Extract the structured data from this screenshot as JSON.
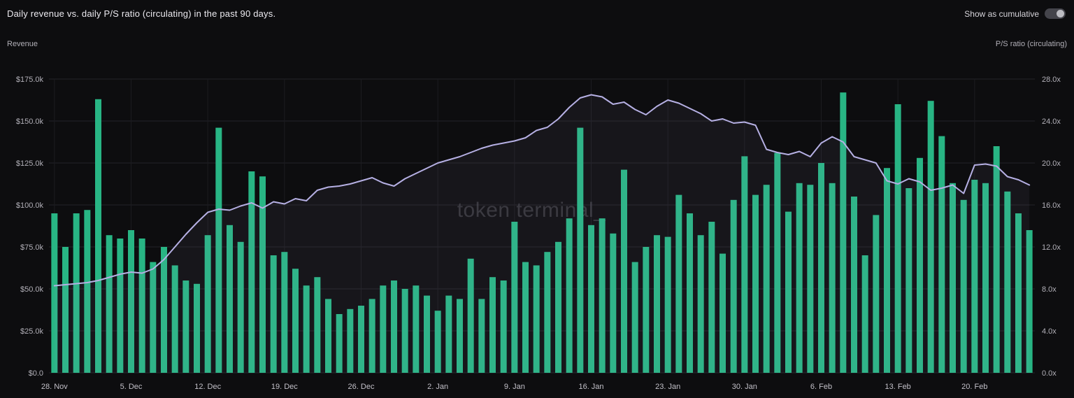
{
  "header": {
    "title": "Daily revenue vs. daily P/S ratio (circulating) in the past 90 days.",
    "toggle_label": "Show as cumulative",
    "toggle_on": false
  },
  "axes": {
    "left_label": "Revenue",
    "right_label": "P/S ratio (circulating)"
  },
  "watermark": "token terminal_",
  "colors": {
    "background": "#0d0d0f",
    "bar": "#28b584",
    "line": "#b6b0e4",
    "line_area": "rgba(182,176,228,0.06)",
    "grid_h": "#232328",
    "grid_v": "#1c1c20",
    "tick_text": "#b2b0b8"
  },
  "chart_data": {
    "type": "bar",
    "title": "Daily revenue vs. daily P/S ratio (circulating) in the past 90 days.",
    "x_tick_indices": [
      0,
      7,
      14,
      21,
      28,
      35,
      42,
      49,
      56,
      63,
      70,
      77,
      84
    ],
    "x_tick_labels": [
      "28. Nov",
      "5. Dec",
      "12. Dec",
      "19. Dec",
      "26. Dec",
      "2. Jan",
      "9. Jan",
      "16. Jan",
      "23. Jan",
      "30. Jan",
      "6. Feb",
      "13. Feb",
      "20. Feb"
    ],
    "left_axis": {
      "label": "Revenue",
      "ticks": [
        "$0.0",
        "$25.0k",
        "$50.0k",
        "$75.0k",
        "$100.0k",
        "$125.0k",
        "$150.0k",
        "$175.0k"
      ],
      "range_thousands": [
        0,
        175
      ]
    },
    "right_axis": {
      "label": "P/S ratio (circulating)",
      "ticks": [
        "0.0x",
        "4.0x",
        "8.0x",
        "12.0x",
        "16.0x",
        "20.0x",
        "24.0x",
        "28.0x"
      ],
      "range": [
        0,
        28
      ]
    },
    "series": [
      {
        "name": "Revenue",
        "type": "bar",
        "unit": "USD thousands",
        "values": [
          95,
          75,
          95,
          97,
          163,
          82,
          80,
          85,
          80,
          66,
          75,
          64,
          55,
          53,
          82,
          146,
          88,
          78,
          120,
          117,
          70,
          72,
          62,
          52,
          57,
          44,
          35,
          38,
          40,
          44,
          52,
          55,
          50,
          52,
          46,
          37,
          46,
          44,
          68,
          44,
          57,
          55,
          90,
          66,
          64,
          72,
          78,
          92,
          146,
          88,
          92,
          83,
          121,
          66,
          75,
          82,
          81,
          106,
          95,
          82,
          90,
          71,
          103,
          129,
          106,
          112,
          131,
          96,
          113,
          112,
          125,
          113,
          167,
          105,
          70,
          94,
          122,
          160,
          110,
          128,
          162,
          141,
          113,
          103,
          115,
          113,
          135,
          108,
          95,
          85
        ]
      },
      {
        "name": "P/S ratio (circulating)",
        "type": "line",
        "unit": "x",
        "values": [
          8.3,
          8.4,
          8.5,
          8.6,
          8.8,
          9.1,
          9.4,
          9.6,
          9.5,
          9.9,
          10.8,
          12.0,
          13.2,
          14.3,
          15.3,
          15.6,
          15.5,
          15.9,
          16.2,
          15.7,
          16.3,
          16.1,
          16.6,
          16.4,
          17.4,
          17.7,
          17.8,
          18.0,
          18.3,
          18.6,
          18.1,
          17.8,
          18.5,
          19.0,
          19.5,
          20.0,
          20.3,
          20.6,
          21.0,
          21.4,
          21.7,
          21.9,
          22.1,
          22.4,
          23.1,
          23.4,
          24.2,
          25.3,
          26.2,
          26.5,
          26.3,
          25.6,
          25.8,
          25.1,
          24.6,
          25.4,
          26.0,
          25.7,
          25.2,
          24.7,
          24.0,
          24.2,
          23.8,
          23.9,
          23.6,
          21.3,
          21.0,
          20.8,
          21.1,
          20.6,
          21.9,
          22.5,
          22.0,
          20.6,
          20.3,
          20.0,
          18.3,
          18.0,
          18.5,
          18.2,
          17.4,
          17.6,
          17.9,
          17.1,
          19.8,
          19.9,
          19.7,
          18.7,
          18.4,
          17.9
        ]
      }
    ],
    "grid": true,
    "legend_position": "none"
  }
}
